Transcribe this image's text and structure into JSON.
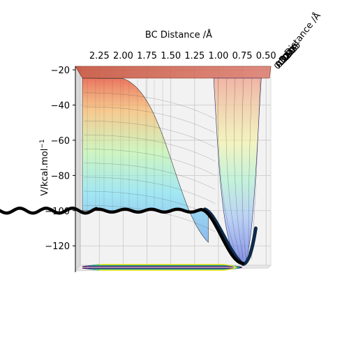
{
  "chart_data": {
    "type": "surface3d",
    "title": "",
    "xlabel": "BC Distance /Å",
    "ylabel": "AB Distance /Å",
    "zlabel": "V/kcal.mol$^{-1}$",
    "x_ticks": [
      "2.25",
      "2.00",
      "1.75",
      "1.50",
      "1.25",
      "1.00",
      "0.75",
      "0.50"
    ],
    "x_tick_values": [
      2.25,
      2.0,
      1.75,
      1.5,
      1.25,
      1.0,
      0.75,
      0.5
    ],
    "y_ticks": [
      "0.50",
      "0.75",
      "1.00",
      "1.25",
      "1.50",
      "1.75",
      "2.00",
      "2.25"
    ],
    "z_ticks": [
      "−20",
      "−40",
      "−60",
      "−80",
      "−100",
      "−120"
    ],
    "z_tick_values": [
      -20,
      -40,
      -60,
      -80,
      -100,
      -120
    ],
    "zlim": [
      -133,
      -18
    ],
    "xlim": [
      2.45,
      0.45
    ],
    "surface": {
      "plateau_energy": -25,
      "well_minimum_energy": -130,
      "well_minimum_bc_distance": 0.74,
      "colormap": "jet",
      "alpha": 0.5
    },
    "trajectory": {
      "color": "#000000",
      "mean_energy": -100,
      "oscillation_amplitude": 2,
      "final_minimum_energy": -130,
      "final_bc_distance": 0.74
    },
    "contours": {
      "colormap": "viridis",
      "offset_energy": -133
    }
  }
}
